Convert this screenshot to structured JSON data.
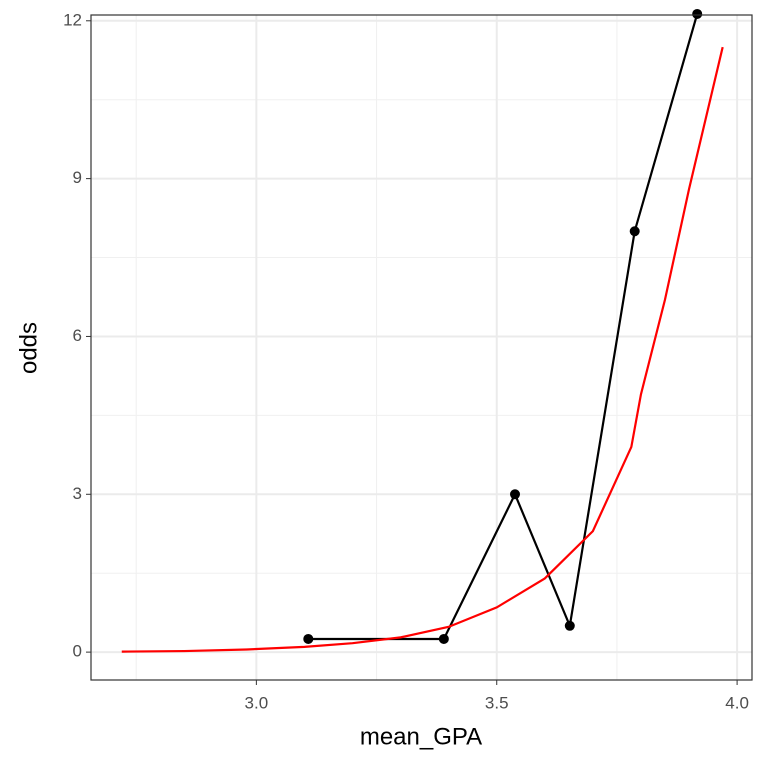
{
  "chart_data": {
    "type": "line",
    "x_label": "mean_GPA",
    "y_label": "odds",
    "xlim": [
      2.656,
      4.031
    ],
    "ylim": [
      -0.53,
      12.11
    ],
    "xticks": [
      {
        "value": 3.0,
        "label": "3.0"
      },
      {
        "value": 3.5,
        "label": "3.5"
      },
      {
        "value": 4.0,
        "label": "4.0"
      }
    ],
    "yticks": [
      0,
      3,
      6,
      9,
      12
    ],
    "x_minor_ticks": [
      2.75,
      3.25,
      3.75
    ],
    "y_minor_ticks": [
      1.5,
      4.5,
      7.5,
      10.5
    ],
    "grid": true,
    "series": [
      {
        "color": "#000000",
        "markers": true,
        "x": [
          3.108,
          3.39,
          3.538,
          3.652,
          3.787,
          3.917
        ],
        "values": [
          0.25,
          0.25,
          3.0,
          0.5,
          8.0,
          12.13
        ]
      },
      {
        "color": "#ff0000",
        "markers": false,
        "x": [
          2.72,
          2.85,
          2.98,
          3.1,
          3.2,
          3.3,
          3.4,
          3.5,
          3.6,
          3.7,
          3.78,
          3.8,
          3.85,
          3.9,
          3.97
        ],
        "values": [
          0.01,
          0.02,
          0.05,
          0.1,
          0.17,
          0.28,
          0.48,
          0.85,
          1.4,
          2.3,
          3.9,
          4.9,
          6.7,
          8.8,
          11.5
        ]
      }
    ]
  }
}
